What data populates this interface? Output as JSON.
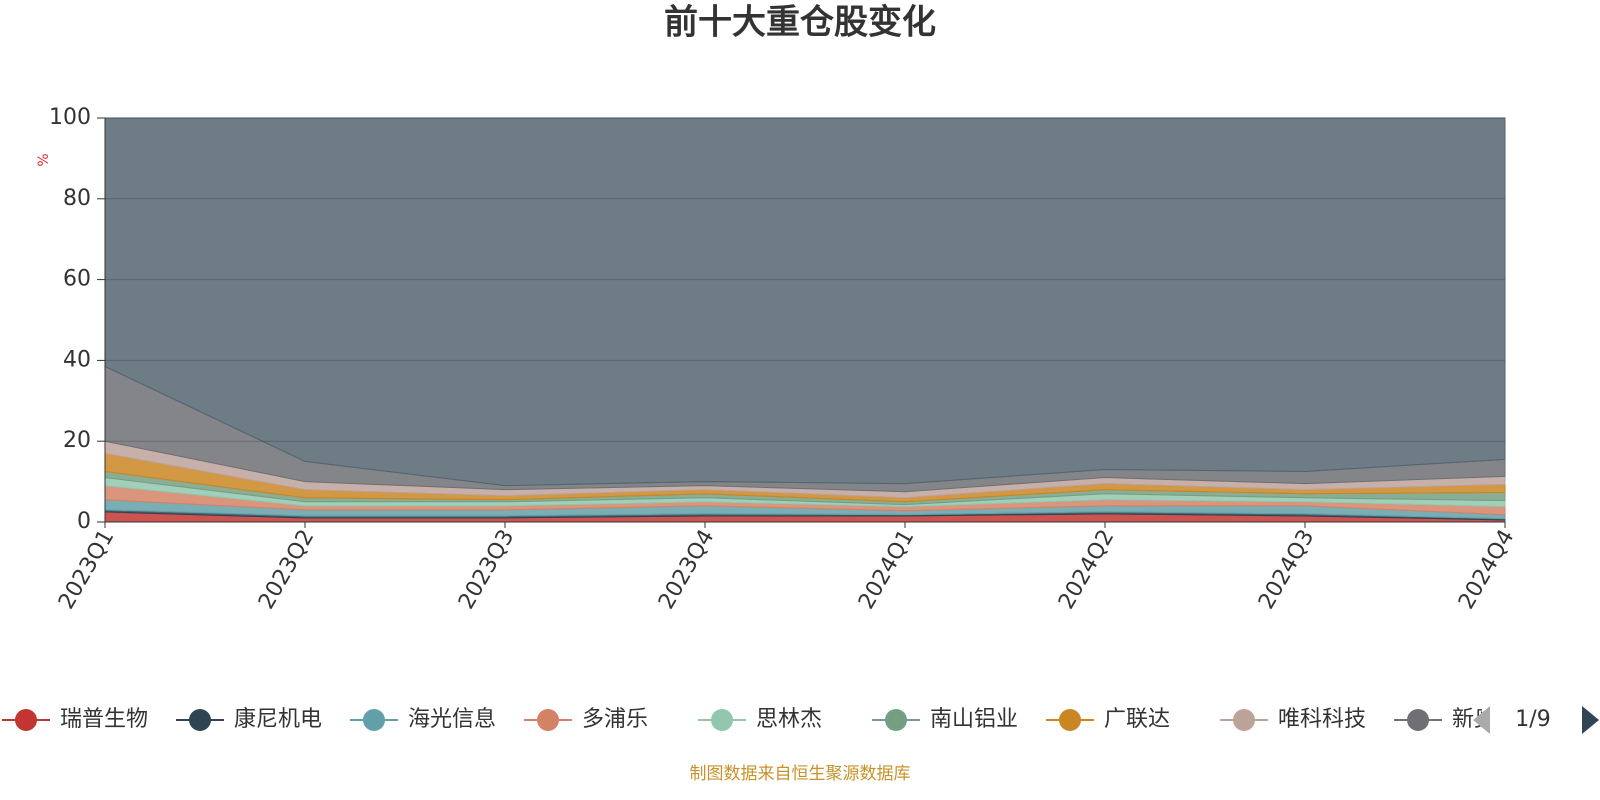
{
  "chart_data": {
    "type": "stacked_area",
    "title": "前十大重仓股变化",
    "y_label": "%",
    "categories": [
      "2023Q1",
      "2023Q2",
      "2023Q3",
      "2023Q4",
      "2024Q1",
      "2024Q2",
      "2024Q3",
      "2024Q4"
    ],
    "ylim": [
      0,
      100
    ],
    "yticks": [
      0,
      20,
      40,
      60,
      80,
      100
    ],
    "grid": true,
    "series": [
      {
        "name": "瑞普生物",
        "color": "#c23531",
        "values": [
          2.5,
          1,
          1,
          1.5,
          1.5,
          2,
          1.5,
          0.5
        ]
      },
      {
        "name": "康尼机电",
        "color": "#2f4554",
        "values": [
          0.5,
          0.5,
          0.5,
          0.5,
          0.3,
          0.5,
          0.5,
          0.3
        ]
      },
      {
        "name": "海光信息",
        "color": "#61a0a8",
        "values": [
          2.5,
          1.5,
          1.5,
          2,
          1,
          1.5,
          2,
          1
        ]
      },
      {
        "name": "多浦乐",
        "color": "#d48265",
        "values": [
          3.5,
          1,
          1,
          1,
          1,
          1.5,
          1,
          2
        ]
      },
      {
        "name": "思林杰",
        "color": "#91c7ae",
        "values": [
          2,
          1,
          1,
          1,
          0.5,
          1.5,
          1,
          1.5
        ]
      },
      {
        "name": "南山铝业",
        "color": "#749f83",
        "values": [
          1.5,
          1,
          0.5,
          1,
          0.7,
          1,
          1,
          2
        ]
      },
      {
        "name": "广联达",
        "color": "#ca8622",
        "values": [
          4.5,
          2,
          1,
          1,
          1,
          1.5,
          1,
          2
        ]
      },
      {
        "name": "唯科科技",
        "color": "#bda29a",
        "values": [
          3,
          2,
          1.5,
          1,
          1.5,
          1.5,
          1.5,
          2
        ]
      },
      {
        "name": "新奥股份",
        "color": "#6e7074",
        "values": [
          18.5,
          5,
          1,
          1,
          2,
          2,
          3,
          4.2
        ]
      },
      {
        "color": "#546570",
        "values": [
          61.5,
          85,
          91,
          90,
          90.5,
          87,
          87.5,
          84.5
        ]
      }
    ],
    "legend_page": "1/9",
    "source": "制图数据来自恒生聚源数据库"
  }
}
